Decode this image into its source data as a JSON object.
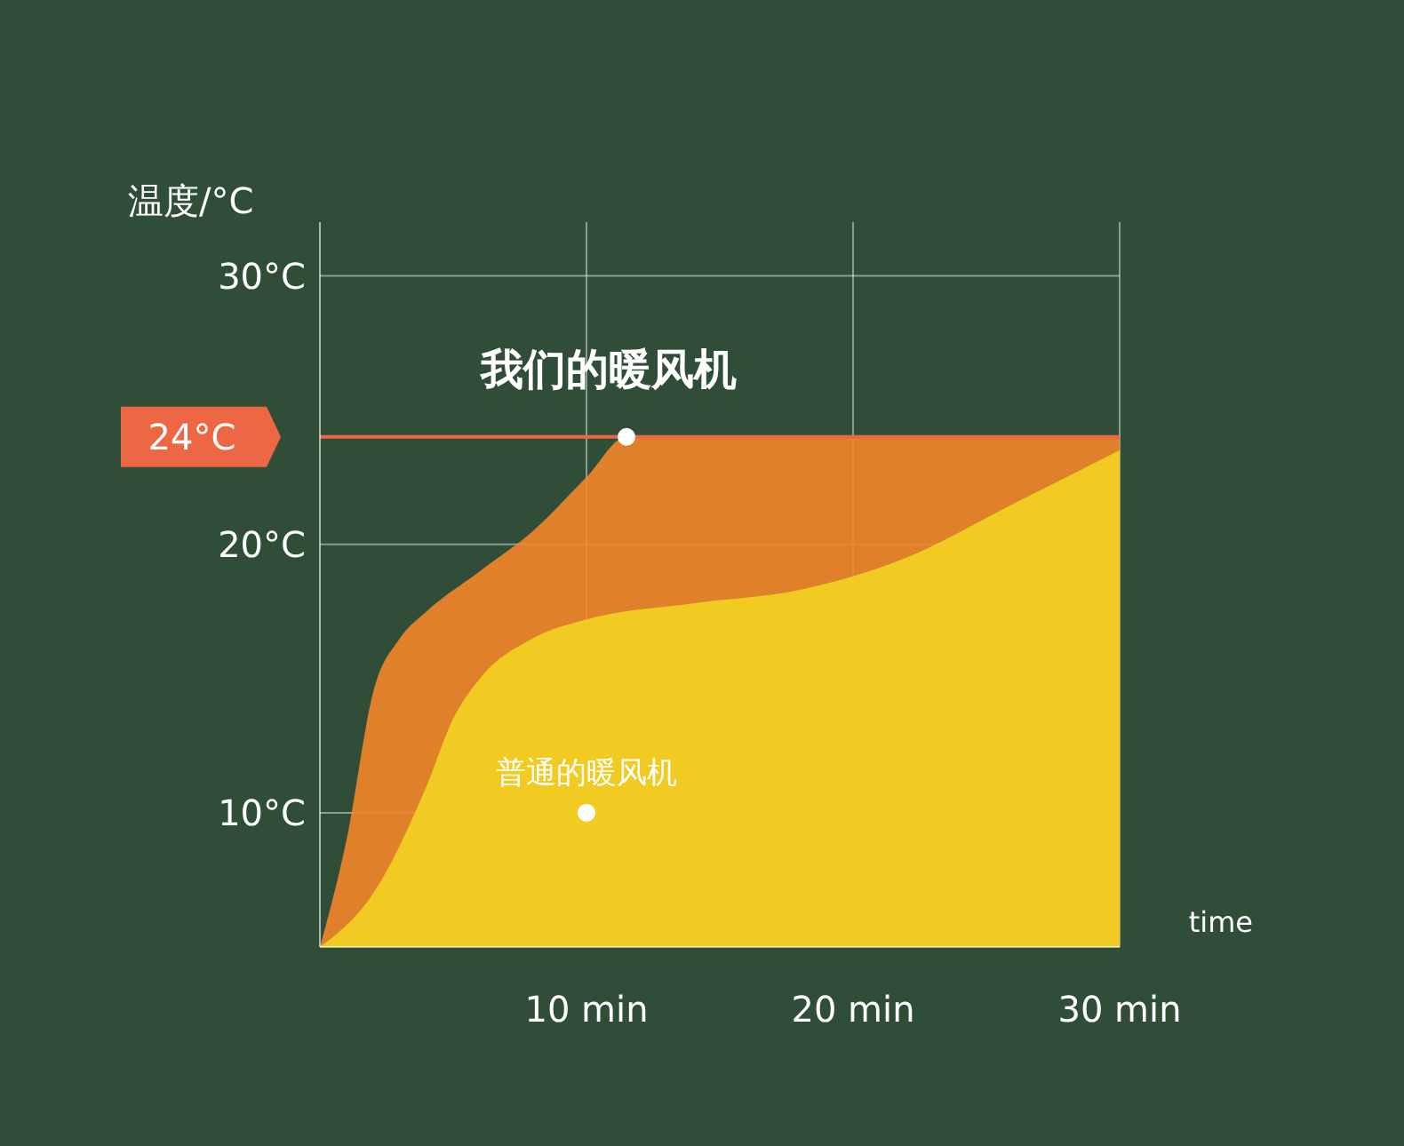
{
  "chart_data": {
    "type": "area",
    "ylabel": "温度/°C",
    "xlabel": "time",
    "xlim": [
      0,
      30
    ],
    "ylim": [
      5,
      32
    ],
    "xticks": [
      {
        "value": 10,
        "label": "10 min"
      },
      {
        "value": 20,
        "label": "20 min"
      },
      {
        "value": 30,
        "label": "30 min"
      }
    ],
    "yticks": [
      {
        "value": 10,
        "label": "10°C"
      },
      {
        "value": 20,
        "label": "20°C"
      },
      {
        "value": 30,
        "label": "30°C"
      }
    ],
    "grid": true,
    "legend": false,
    "series": [
      {
        "color": "#f5862a",
        "x": [
          0,
          1,
          2,
          3,
          4,
          6,
          8,
          10,
          11.5,
          15,
          20,
          25,
          30
        ],
        "values": [
          5,
          9,
          14.5,
          16.5,
          17.5,
          19,
          20.5,
          22.5,
          24,
          24,
          24,
          24,
          24
        ]
      },
      {
        "color": "#f3d321",
        "x": [
          0,
          2,
          4,
          5,
          6,
          8,
          10,
          14,
          18,
          22,
          26,
          30
        ],
        "values": [
          5,
          7,
          11,
          13.5,
          15,
          16.5,
          17.2,
          17.8,
          18.3,
          19.5,
          21.5,
          23.5
        ]
      }
    ],
    "ref_lines": [
      {
        "axis": "y",
        "value": 24,
        "label": "24°C",
        "color": "#ee6744"
      }
    ],
    "annotations": [
      {
        "text": "我们的暖风机",
        "x": 11.5,
        "y": 24
      },
      {
        "text": "普通的暖风机",
        "x": 10,
        "y": 10
      }
    ]
  }
}
